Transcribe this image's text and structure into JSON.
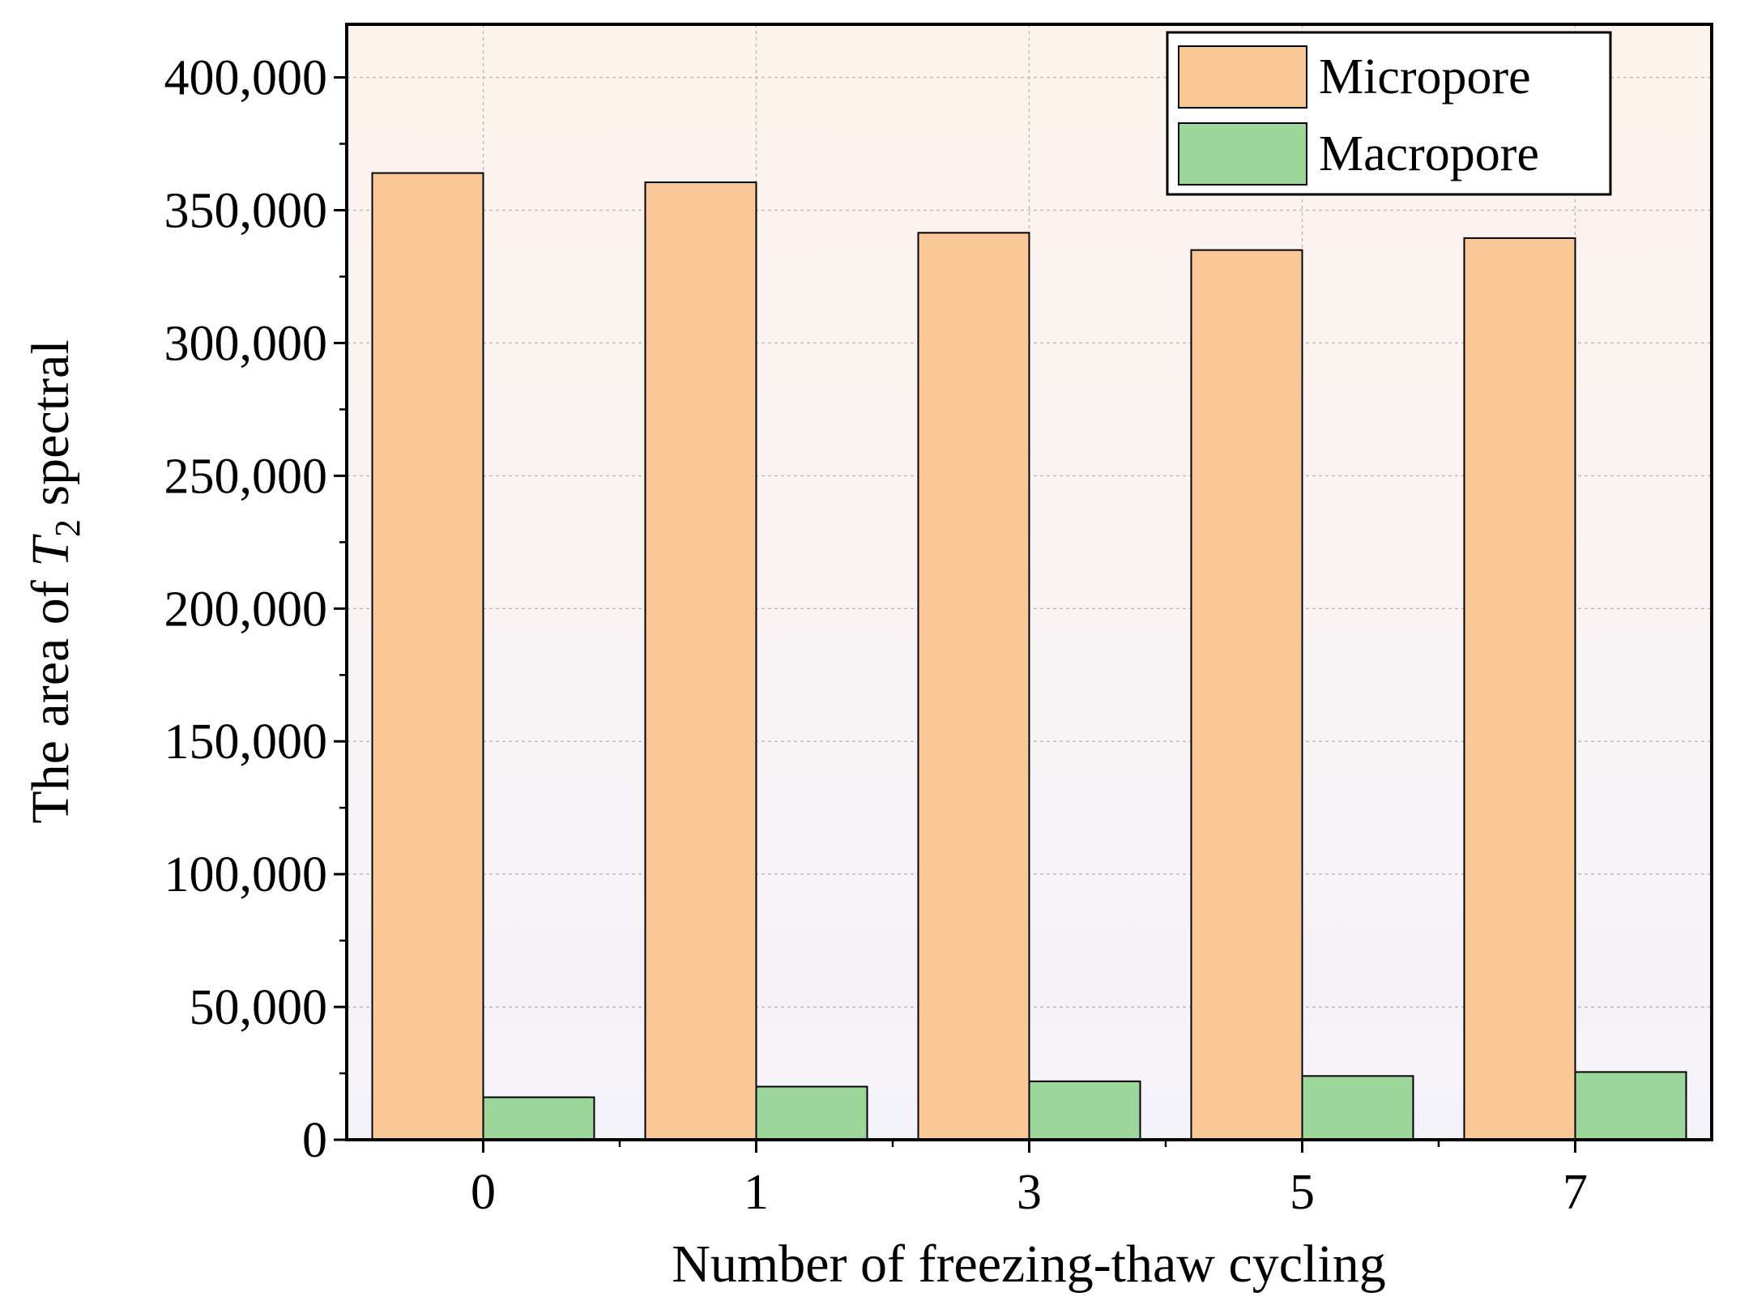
{
  "chart_data": {
    "type": "bar",
    "title": "",
    "xlabel": "Number of freezing-thaw cycling",
    "ylabel": {
      "prefix": "The area of ",
      "symbol": "T",
      "subscript": "2",
      "suffix": " spectral"
    },
    "categories": [
      "0",
      "1",
      "3",
      "5",
      "7"
    ],
    "series": [
      {
        "name": "Micropore",
        "color": "#fac796",
        "values": [
          364000,
          360500,
          341500,
          335000,
          339500
        ]
      },
      {
        "name": "Macropore",
        "color": "#9dd69b",
        "values": [
          16000,
          20000,
          22000,
          24000,
          25500
        ]
      }
    ],
    "ylim": [
      0,
      420000
    ],
    "yticks": [
      0,
      50000,
      100000,
      150000,
      200000,
      250000,
      300000,
      350000,
      400000
    ],
    "ytick_labels": [
      "0",
      "50,000",
      "100,000",
      "150,000",
      "200,000",
      "250,000",
      "300,000",
      "350,000",
      "400,000"
    ],
    "grid": true,
    "legend_position": "top-right",
    "background_gradient": [
      "#fdf3ec",
      "#f5f3fa"
    ]
  }
}
